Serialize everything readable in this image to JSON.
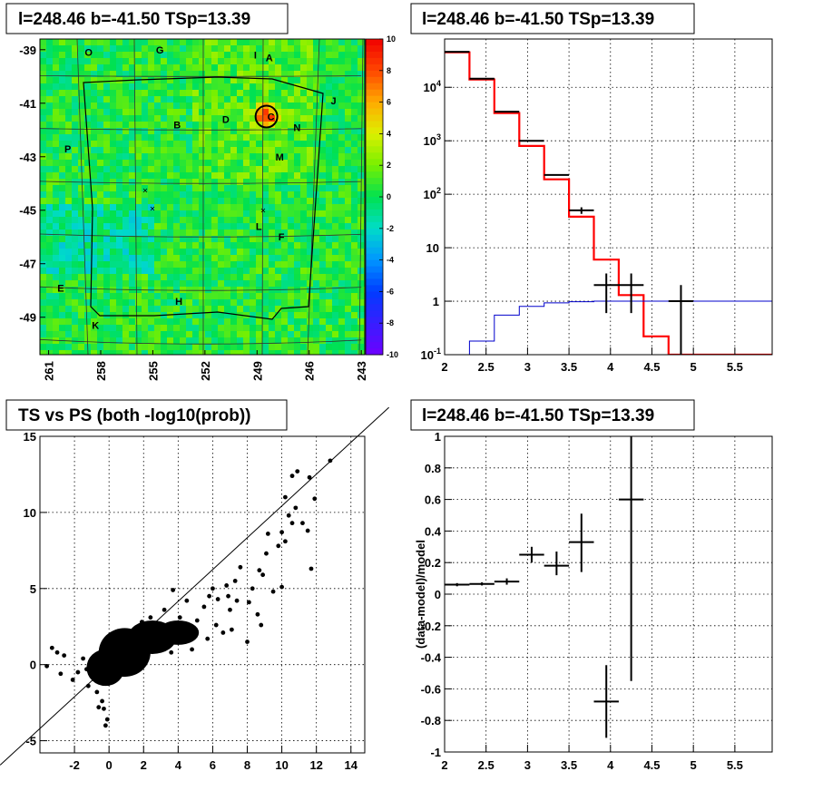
{
  "chart_data": [
    {
      "type": "heatmap",
      "title": "l=248.46 b=-41.50 TSp=13.39",
      "x_ticks": [
        "261",
        "258",
        "255",
        "252",
        "249",
        "246",
        "243"
      ],
      "y_ticks": [
        "-39",
        "-41",
        "-43",
        "-45",
        "-47",
        "-49"
      ],
      "xlim": [
        261.5,
        242.8
      ],
      "ylim": [
        -50.4,
        -38.6
      ],
      "colorbar_ticks": [
        "10",
        "8",
        "6",
        "4",
        "2",
        "0",
        "-2",
        "-4",
        "-6",
        "-8",
        "-10"
      ],
      "zlim": [
        -10,
        10
      ],
      "region_labels": [
        {
          "text": "O",
          "l": 258.7,
          "b": -39.1
        },
        {
          "text": "G",
          "l": 254.6,
          "b": -39.0
        },
        {
          "text": "I",
          "l": 249.1,
          "b": -39.2
        },
        {
          "text": "A",
          "l": 248.3,
          "b": -39.3
        },
        {
          "text": "J",
          "l": 244.6,
          "b": -40.9
        },
        {
          "text": "B",
          "l": 253.6,
          "b": -41.8
        },
        {
          "text": "D",
          "l": 250.8,
          "b": -41.6
        },
        {
          "text": "C",
          "l": 248.2,
          "b": -41.5
        },
        {
          "text": "N",
          "l": 246.7,
          "b": -41.9
        },
        {
          "text": "P",
          "l": 259.9,
          "b": -42.7
        },
        {
          "text": "M",
          "l": 247.7,
          "b": -43.0
        },
        {
          "text": "L",
          "l": 248.9,
          "b": -45.6
        },
        {
          "text": "F",
          "l": 247.6,
          "b": -46.0
        },
        {
          "text": "E",
          "l": 260.3,
          "b": -47.9
        },
        {
          "text": "H",
          "l": 253.5,
          "b": -48.4
        },
        {
          "text": "K",
          "l": 258.3,
          "b": -49.3
        }
      ],
      "source_circle": {
        "l": 248.46,
        "b": -41.5
      }
    },
    {
      "type": "line",
      "title": "l=248.46 b=-41.50 TSp=13.39",
      "x_ticks": [
        "2",
        "2.5",
        "3",
        "3.5",
        "4",
        "4.5",
        "5",
        "5.5"
      ],
      "y_ticks": [
        "10^4",
        "10^3",
        "10^2",
        "10",
        "1",
        "10^-1"
      ],
      "xlim": [
        2.0,
        5.95
      ],
      "ylim": [
        0.1,
        80000
      ],
      "log_y": true,
      "grid": true,
      "series": [
        {
          "color": "#ff0000",
          "bin_edges": [
            2.0,
            2.3,
            2.6,
            2.9,
            3.2,
            3.5,
            3.8,
            4.1,
            4.4,
            4.7,
            5.0,
            5.95
          ],
          "values": [
            45000,
            14000,
            3300,
            800,
            190,
            38,
            6,
            1.3,
            0.22,
            0.1,
            0.1
          ]
        },
        {
          "color": "#0000cc",
          "bin_edges": [
            2.0,
            2.3,
            2.6,
            2.9,
            3.2,
            3.5,
            3.8,
            4.1,
            4.4,
            4.7,
            5.0,
            5.95
          ],
          "values": [
            0.03,
            0.18,
            0.55,
            0.8,
            0.93,
            0.98,
            1.0,
            1.0,
            1.0,
            1.0,
            1.0
          ]
        },
        {
          "color": "#000000",
          "points": [
            {
              "x": 2.15,
              "y": 46000,
              "xerr": 0.15,
              "ylo": 46000,
              "yhi": 46000
            },
            {
              "x": 2.45,
              "y": 14500,
              "xerr": 0.15,
              "ylo": 14500,
              "yhi": 14500
            },
            {
              "x": 2.75,
              "y": 3500,
              "xerr": 0.15,
              "ylo": 3500,
              "yhi": 3500
            },
            {
              "x": 3.05,
              "y": 1000,
              "xerr": 0.15,
              "ylo": 1000,
              "yhi": 1000
            },
            {
              "x": 3.35,
              "y": 230,
              "xerr": 0.15,
              "ylo": 230,
              "yhi": 230
            },
            {
              "x": 3.65,
              "y": 50,
              "xerr": 0.15,
              "ylo": 43,
              "yhi": 57
            },
            {
              "x": 3.95,
              "y": 2,
              "xerr": 0.15,
              "ylo": 0.6,
              "yhi": 3.3
            },
            {
              "x": 4.25,
              "y": 2,
              "xerr": 0.15,
              "ylo": 0.6,
              "yhi": 3.3
            },
            {
              "x": 4.85,
              "y": 1,
              "xerr": 0.15,
              "ylo": 0.1,
              "yhi": 2.0
            }
          ]
        }
      ]
    },
    {
      "type": "scatter",
      "title": "TS vs PS (both -log10(prob))",
      "x_ticks": [
        "-2",
        "0",
        "2",
        "4",
        "6",
        "8",
        "10",
        "12",
        "14"
      ],
      "y_ticks": [
        "15",
        "10",
        "5",
        "0",
        "-5"
      ],
      "xlim": [
        -4.0,
        14.8
      ],
      "ylim": [
        -5.8,
        15.0
      ],
      "grid": true,
      "diagonal": {
        "from": [
          -6.3,
          -6.6
        ],
        "to": [
          16.2,
          16.9
        ]
      },
      "points": [
        [
          12.8,
          13.4
        ],
        [
          11.6,
          12.3
        ],
        [
          10.9,
          12.7
        ],
        [
          10.6,
          12.4
        ],
        [
          10.2,
          11.0
        ],
        [
          11.9,
          10.9
        ],
        [
          10.8,
          10.3
        ],
        [
          10.4,
          9.8
        ],
        [
          11.2,
          9.3
        ],
        [
          10.6,
          9.3
        ],
        [
          10.0,
          8.7
        ],
        [
          11.5,
          8.8
        ],
        [
          9.2,
          8.6
        ],
        [
          10.2,
          8.1
        ],
        [
          9.8,
          7.8
        ],
        [
          11.7,
          6.3
        ],
        [
          9.1,
          7.3
        ],
        [
          8.7,
          6.2
        ],
        [
          7.6,
          6.4
        ],
        [
          8.9,
          5.9
        ],
        [
          10.0,
          5.1
        ],
        [
          7.3,
          5.5
        ],
        [
          6.8,
          5.2
        ],
        [
          8.3,
          5.0
        ],
        [
          6.0,
          5.0
        ],
        [
          7.4,
          4.2
        ],
        [
          8.1,
          4.1
        ],
        [
          6.3,
          4.3
        ],
        [
          8.6,
          3.3
        ],
        [
          8.8,
          2.6
        ],
        [
          5.8,
          4.5
        ],
        [
          7.0,
          3.6
        ],
        [
          5.5,
          3.8
        ],
        [
          4.5,
          4.2
        ],
        [
          3.7,
          4.9
        ],
        [
          4.1,
          3.1
        ],
        [
          5.1,
          2.9
        ],
        [
          6.2,
          2.6
        ],
        [
          7.1,
          2.3
        ],
        [
          8.0,
          1.5
        ],
        [
          6.6,
          2.1
        ],
        [
          5.7,
          1.7
        ],
        [
          4.8,
          1.0
        ],
        [
          3.6,
          0.8
        ],
        [
          2.6,
          1.5
        ],
        [
          1.9,
          2.8
        ],
        [
          1.1,
          1.9
        ],
        [
          0.6,
          0.8
        ],
        [
          1.5,
          0.9
        ],
        [
          0.4,
          0.3
        ],
        [
          0.9,
          0.1
        ],
        [
          0.3,
          -0.4
        ],
        [
          -0.2,
          0.2
        ],
        [
          -0.5,
          -0.4
        ],
        [
          -0.8,
          -0.1
        ],
        [
          -1.3,
          -0.3
        ],
        [
          -1.8,
          -0.5
        ],
        [
          -2.6,
          0.6
        ],
        [
          -3.0,
          0.8
        ],
        [
          -3.3,
          1.1
        ],
        [
          -2.1,
          -1.0
        ],
        [
          -1.2,
          -1.4
        ],
        [
          -0.7,
          -1.8
        ],
        [
          -0.4,
          -2.4
        ],
        [
          -0.3,
          -2.9
        ],
        [
          -0.1,
          -3.6
        ],
        [
          -0.2,
          -4.0
        ],
        [
          0.1,
          -1.1
        ],
        [
          -0.6,
          -2.8
        ],
        [
          2.2,
          0.5
        ],
        [
          3.0,
          1.1
        ],
        [
          3.9,
          2.2
        ],
        [
          4.4,
          2.7
        ],
        [
          2.8,
          2.4
        ],
        [
          2.0,
          1.2
        ],
        [
          1.3,
          0.4
        ],
        [
          0.8,
          -0.3
        ],
        [
          1.7,
          2.2
        ],
        [
          2.4,
          3.1
        ],
        [
          0.3,
          1.3
        ],
        [
          3.2,
          3.6
        ],
        [
          4.2,
          1.5
        ],
        [
          6.9,
          4.5
        ],
        [
          9.5,
          4.8
        ],
        [
          -3.6,
          -0.1
        ],
        [
          -2.8,
          -0.6
        ],
        [
          -1.5,
          0.4
        ],
        [
          1.0,
          -0.6
        ]
      ],
      "density_blobs": [
        {
          "cx": 0.9,
          "cy": 0.8,
          "rx": 1.5,
          "ry": 1.6
        },
        {
          "cx": -0.2,
          "cy": -0.2,
          "rx": 1.1,
          "ry": 1.2
        },
        {
          "cx": 2.5,
          "cy": 1.8,
          "rx": 1.4,
          "ry": 1.1
        },
        {
          "cx": 4.0,
          "cy": 2.1,
          "rx": 1.2,
          "ry": 0.8
        }
      ]
    },
    {
      "type": "scatter",
      "title": "l=248.46 b=-41.50 TSp=13.39",
      "ylabel": "(data-model)/model",
      "x_ticks": [
        "2",
        "2.5",
        "3",
        "3.5",
        "4",
        "4.5",
        "5",
        "5.5"
      ],
      "y_ticks": [
        "1",
        "0.8",
        "0.6",
        "0.4",
        "0.2",
        "0",
        "-0.2",
        "-0.4",
        "-0.6",
        "-0.8",
        "-1"
      ],
      "xlim": [
        2.0,
        5.95
      ],
      "ylim": [
        -1.0,
        1.0
      ],
      "grid": true,
      "points": [
        {
          "x": 2.15,
          "y": 0.06,
          "xerr": 0.15,
          "ylo": 0.05,
          "yhi": 0.07
        },
        {
          "x": 2.45,
          "y": 0.065,
          "xerr": 0.15,
          "ylo": 0.055,
          "yhi": 0.075
        },
        {
          "x": 2.75,
          "y": 0.08,
          "xerr": 0.15,
          "ylo": 0.06,
          "yhi": 0.1
        },
        {
          "x": 3.05,
          "y": 0.25,
          "xerr": 0.15,
          "ylo": 0.2,
          "yhi": 0.3
        },
        {
          "x": 3.35,
          "y": 0.18,
          "xerr": 0.15,
          "ylo": 0.12,
          "yhi": 0.27
        },
        {
          "x": 3.65,
          "y": 0.33,
          "xerr": 0.15,
          "ylo": 0.14,
          "yhi": 0.51
        },
        {
          "x": 3.95,
          "y": -0.68,
          "xerr": 0.15,
          "ylo": -0.91,
          "yhi": -0.45
        },
        {
          "x": 4.25,
          "y": 0.6,
          "xerr": 0.15,
          "ylo": -0.55,
          "yhi": 1.0
        }
      ]
    }
  ]
}
